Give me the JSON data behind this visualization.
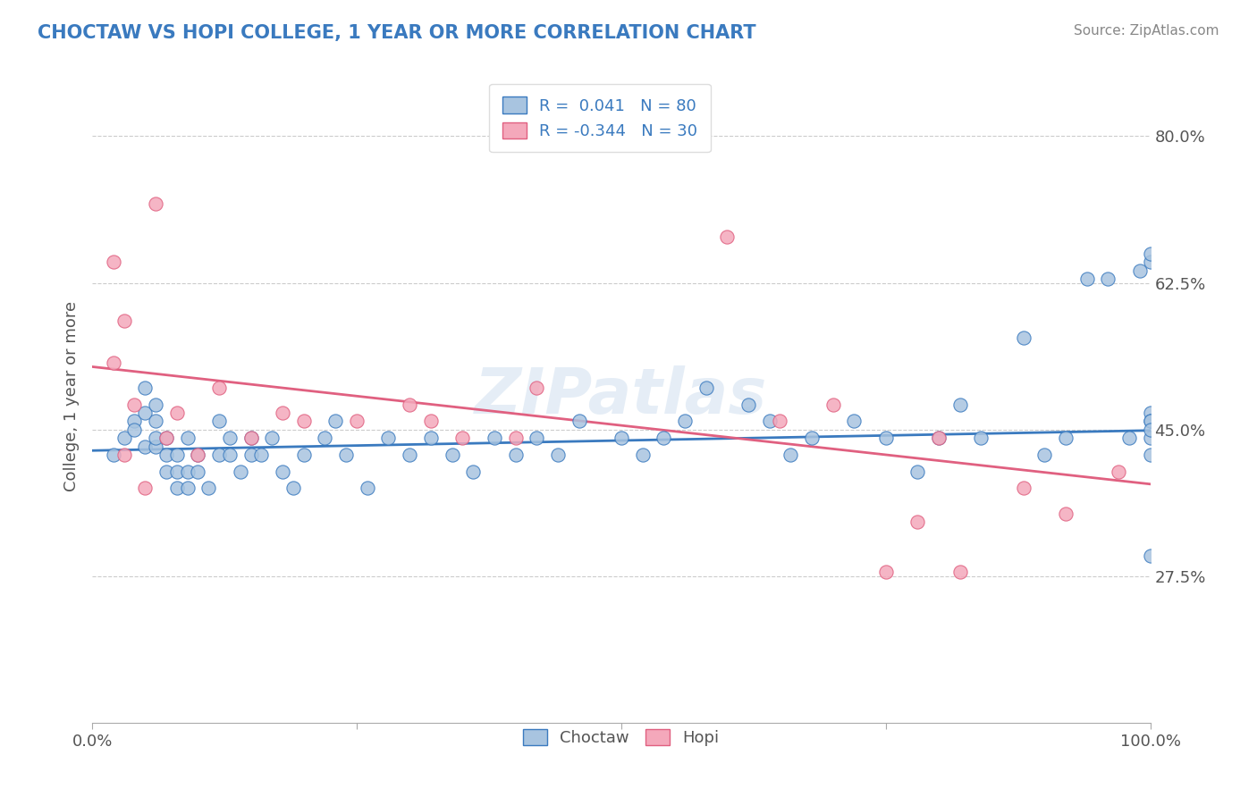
{
  "title": "CHOCTAW VS HOPI COLLEGE, 1 YEAR OR MORE CORRELATION CHART",
  "source_text": "Source: ZipAtlas.com",
  "ylabel": "College, 1 year or more",
  "xlabel": "",
  "xlim": [
    0.0,
    1.0
  ],
  "ylim": [
    0.1,
    0.88
  ],
  "xticks": [
    0.0,
    0.25,
    0.5,
    0.75,
    1.0
  ],
  "xticklabels": [
    "0.0%",
    "",
    "",
    "",
    "100.0%"
  ],
  "yticks": [
    0.275,
    0.45,
    0.625,
    0.8
  ],
  "yticklabels": [
    "27.5%",
    "45.0%",
    "62.5%",
    "80.0%"
  ],
  "legend_r1": "R =  0.041   N = 80",
  "legend_r2": "R = -0.344   N = 30",
  "choctaw_color": "#a8c4e0",
  "hopi_color": "#f4a8bb",
  "choctaw_line_color": "#3a7abf",
  "hopi_line_color": "#e06080",
  "watermark": "ZIPatlas",
  "grid_color": "#cccccc",
  "background_color": "#ffffff",
  "choctaw_x": [
    0.02,
    0.03,
    0.04,
    0.04,
    0.05,
    0.05,
    0.05,
    0.06,
    0.06,
    0.06,
    0.06,
    0.07,
    0.07,
    0.07,
    0.08,
    0.08,
    0.08,
    0.09,
    0.09,
    0.09,
    0.1,
    0.1,
    0.11,
    0.12,
    0.12,
    0.13,
    0.13,
    0.14,
    0.15,
    0.15,
    0.16,
    0.17,
    0.18,
    0.19,
    0.2,
    0.22,
    0.23,
    0.24,
    0.26,
    0.28,
    0.3,
    0.32,
    0.34,
    0.36,
    0.38,
    0.4,
    0.42,
    0.44,
    0.46,
    0.5,
    0.52,
    0.54,
    0.56,
    0.58,
    0.62,
    0.64,
    0.66,
    0.68,
    0.72,
    0.75,
    0.78,
    0.8,
    0.82,
    0.84,
    0.88,
    0.9,
    0.92,
    0.94,
    0.96,
    0.98,
    0.99,
    1.0,
    1.0,
    1.0,
    1.0,
    1.0,
    1.0,
    1.0,
    1.0,
    1.0
  ],
  "choctaw_y": [
    0.42,
    0.44,
    0.46,
    0.45,
    0.43,
    0.47,
    0.5,
    0.43,
    0.44,
    0.46,
    0.48,
    0.4,
    0.42,
    0.44,
    0.38,
    0.4,
    0.42,
    0.38,
    0.4,
    0.44,
    0.4,
    0.42,
    0.38,
    0.42,
    0.46,
    0.42,
    0.44,
    0.4,
    0.44,
    0.42,
    0.42,
    0.44,
    0.4,
    0.38,
    0.42,
    0.44,
    0.46,
    0.42,
    0.38,
    0.44,
    0.42,
    0.44,
    0.42,
    0.4,
    0.44,
    0.42,
    0.44,
    0.42,
    0.46,
    0.44,
    0.42,
    0.44,
    0.46,
    0.5,
    0.48,
    0.46,
    0.42,
    0.44,
    0.46,
    0.44,
    0.4,
    0.44,
    0.48,
    0.44,
    0.56,
    0.42,
    0.44,
    0.63,
    0.63,
    0.44,
    0.64,
    0.65,
    0.66,
    0.3,
    0.47,
    0.44,
    0.42,
    0.46,
    0.46,
    0.45
  ],
  "hopi_x": [
    0.02,
    0.02,
    0.03,
    0.03,
    0.04,
    0.05,
    0.06,
    0.07,
    0.08,
    0.1,
    0.12,
    0.15,
    0.18,
    0.2,
    0.25,
    0.3,
    0.32,
    0.35,
    0.4,
    0.42,
    0.6,
    0.65,
    0.7,
    0.75,
    0.78,
    0.8,
    0.82,
    0.88,
    0.92,
    0.97
  ],
  "hopi_y": [
    0.65,
    0.53,
    0.58,
    0.42,
    0.48,
    0.38,
    0.72,
    0.44,
    0.47,
    0.42,
    0.5,
    0.44,
    0.47,
    0.46,
    0.46,
    0.48,
    0.46,
    0.44,
    0.44,
    0.5,
    0.68,
    0.46,
    0.48,
    0.28,
    0.34,
    0.44,
    0.28,
    0.38,
    0.35,
    0.4
  ],
  "choctaw_trend_x": [
    0.0,
    1.0
  ],
  "choctaw_trend_y_start": 0.425,
  "choctaw_trend_y_end": 0.449,
  "hopi_trend_x": [
    0.0,
    1.0
  ],
  "hopi_trend_y_start": 0.525,
  "hopi_trend_y_end": 0.385
}
